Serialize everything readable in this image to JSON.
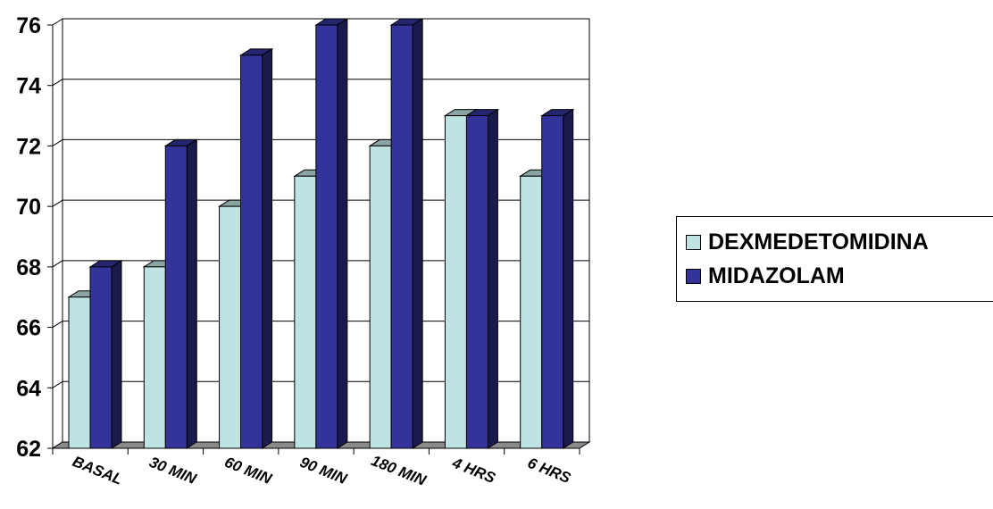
{
  "chart_data": {
    "type": "bar",
    "categories": [
      "BASAL",
      "30 MIN",
      "60 MIN",
      "90 MIN",
      "180 MIN",
      "4 HRS",
      "6 HRS"
    ],
    "series": [
      {
        "name": "DEXMEDETOMIDINA",
        "values": [
          67,
          68,
          70,
          71,
          72,
          73,
          71
        ],
        "color": "#BFE3E3"
      },
      {
        "name": "MIDAZOLAM",
        "values": [
          68,
          72,
          75,
          76,
          76,
          73,
          73
        ],
        "color": "#33339A"
      }
    ],
    "yticks": [
      "62",
      "64",
      "66",
      "68",
      "70",
      "72",
      "74",
      "76"
    ],
    "ylim": [
      62,
      76
    ],
    "grid": true,
    "legend_position": "right",
    "title": "",
    "xlabel": "",
    "ylabel": ""
  }
}
